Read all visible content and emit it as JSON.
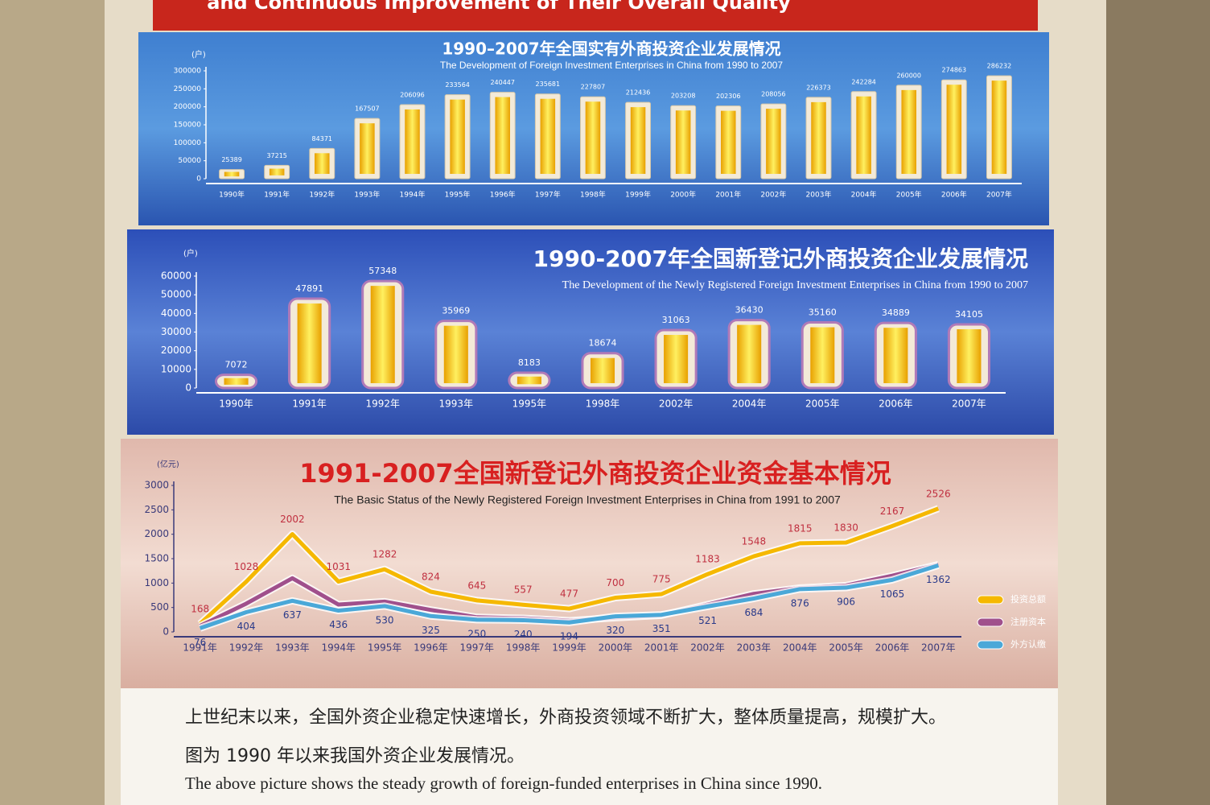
{
  "banner": "and Continuous Improvement of Their Overall Quality",
  "chart_data": [
    {
      "type": "bar",
      "title": "1990–2007年全国实有外商投资企业发展情况",
      "subtitle": "The Development of Foreign Investment Enterprises in China from 1990 to 2007",
      "y_unit": "(户)",
      "categories": [
        "1990年",
        "1991年",
        "1992年",
        "1993年",
        "1994年",
        "1995年",
        "1996年",
        "1997年",
        "1998年",
        "1999年",
        "2000年",
        "2001年",
        "2002年",
        "2003年",
        "2004年",
        "2005年",
        "2006年",
        "2007年"
      ],
      "values": [
        25389,
        37215,
        84371,
        167507,
        206096,
        233564,
        240447,
        235681,
        227807,
        212436,
        203208,
        202306,
        208056,
        226373,
        242284,
        260000,
        274863,
        286232
      ],
      "color": "#f5c518",
      "ylim": [
        0,
        300000
      ],
      "yticks": [
        0,
        50000,
        100000,
        150000,
        200000,
        250000,
        300000
      ]
    },
    {
      "type": "bar",
      "title": "1990-2007年全国新登记外商投资企业发展情况",
      "subtitle": "The Development of the Newly Registered Foreign Investment Enterprises in China from 1990 to 2007",
      "y_unit": "(户)",
      "categories": [
        "1990年",
        "1991年",
        "1992年",
        "1993年",
        "1995年",
        "1998年",
        "2002年",
        "2004年",
        "2005年",
        "2006年",
        "2007年"
      ],
      "values": [
        7072,
        47891,
        57348,
        35969,
        8183,
        18674,
        31063,
        36430,
        35160,
        34889,
        34105
      ],
      "color": "#f5c518",
      "ylim": [
        0,
        60000
      ],
      "yticks": [
        0,
        10000,
        20000,
        30000,
        40000,
        50000,
        60000
      ]
    },
    {
      "type": "line",
      "title": "1991-2007全国新登记外商投资企业资金基本情况",
      "subtitle": "The Basic Status of the Newly Registered Foreign Investment Enterprises in China from 1991 to 2007",
      "y_unit": "(亿元)",
      "categories": [
        "1991年",
        "1992年",
        "1993年",
        "1994年",
        "1995年",
        "1996年",
        "1997年",
        "1998年",
        "1999年",
        "2000年",
        "2001年",
        "2002年",
        "2003年",
        "2004年",
        "2005年",
        "2006年",
        "2007年"
      ],
      "series": [
        {
          "name": "投资总额",
          "color": "#f5b800",
          "data_labels": true,
          "values": [
            168,
            1028,
            2002,
            1031,
            1282,
            824,
            645,
            557,
            477,
            700,
            775,
            1183,
            1548,
            1815,
            1830,
            2167,
            2526
          ]
        },
        {
          "name": "注册资本",
          "color": "#a0508c",
          "data_labels": false,
          "values": [
            123,
            580,
            1100,
            560,
            620,
            450,
            300,
            280,
            230,
            290,
            340,
            560,
            780,
            900,
            950,
            1150,
            1379
          ]
        },
        {
          "name": "外方认缴",
          "color": "#4aa8d8",
          "data_labels": true,
          "values": [
            76,
            404,
            637,
            436,
            530,
            325,
            250,
            240,
            194,
            320,
            351,
            521,
            684,
            876,
            906,
            1065,
            1362
          ]
        }
      ],
      "ylim": [
        0,
        3000
      ],
      "yticks": [
        0,
        500,
        1000,
        1500,
        2000,
        2500,
        3000
      ]
    }
  ],
  "caption": {
    "line1": "上世纪末以来，全国外资企业稳定快速增长，外商投资领域不断扩大，整体质量提高，规模扩大。",
    "line2": "图为 1990 年以来我国外资企业发展情况。",
    "english": "The above picture shows the steady growth of foreign-funded enterprises in China since 1990."
  }
}
